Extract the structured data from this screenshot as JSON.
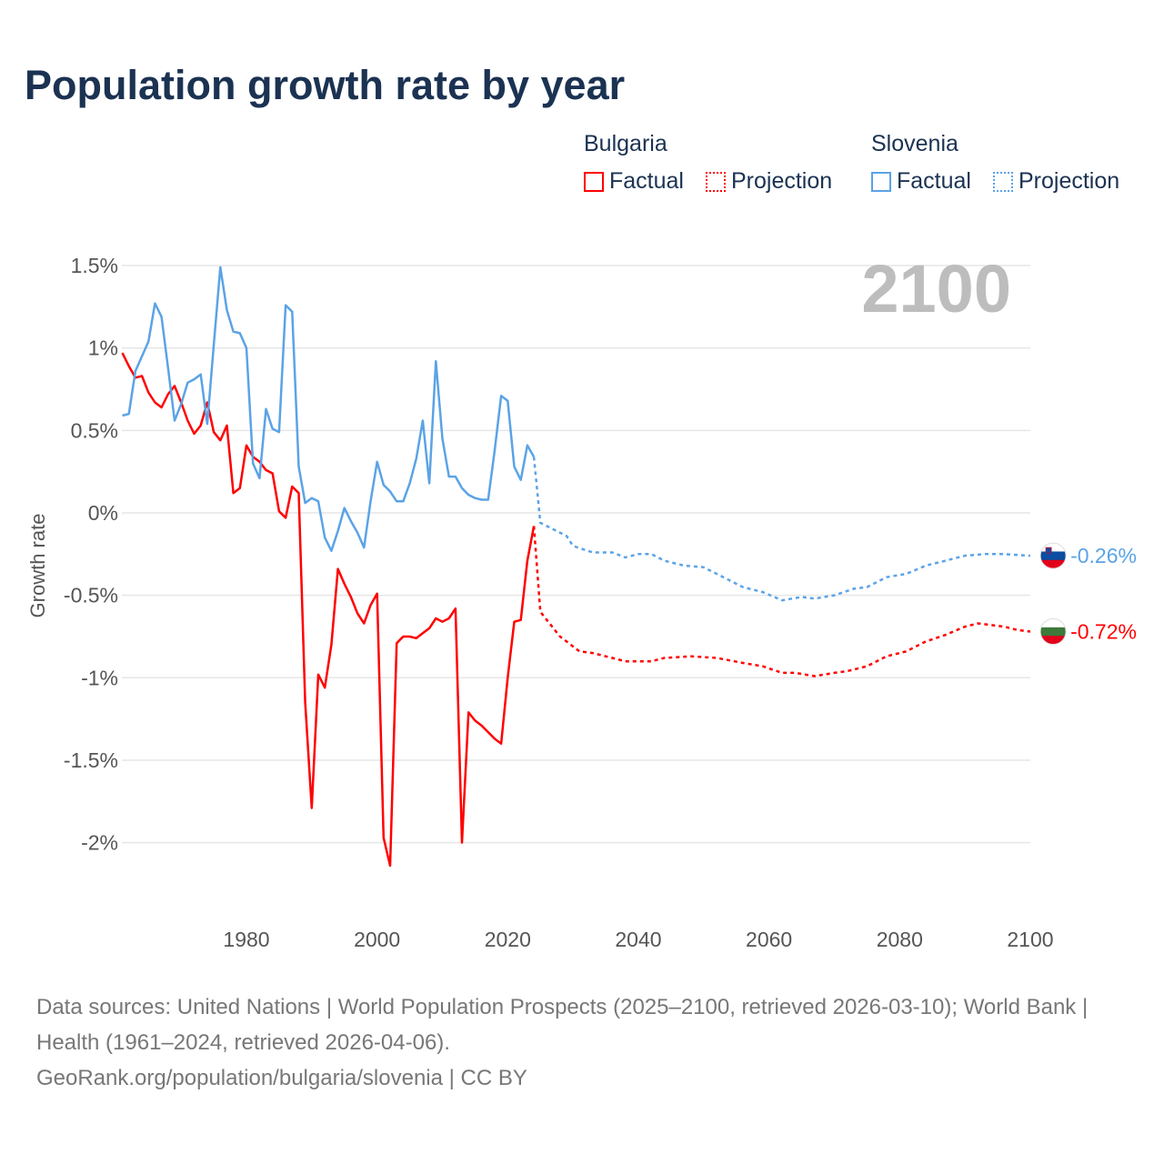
{
  "title": "Population growth rate by year",
  "current_year": "2100",
  "legend": {
    "groups": [
      {
        "name": "Bulgaria",
        "factual": "Factual",
        "projection": "Projection",
        "color": "#ff0000"
      },
      {
        "name": "Slovenia",
        "factual": "Factual",
        "projection": "Projection",
        "color": "#5ba3e6"
      }
    ]
  },
  "footer": {
    "sources": "Data sources: United Nations | World Population Prospects (2025–2100, retrieved 2026-03-10); World Bank | Health (1961–2024, retrieved 2026-04-06).",
    "link": "GeoRank.org/population/bulgaria/slovenia | CC BY"
  },
  "chart_data": {
    "type": "line",
    "title": "Population growth rate by year",
    "xlabel": "",
    "ylabel": "Growth rate",
    "xlim": [
      1961,
      2100
    ],
    "ylim": [
      -2.3,
      1.6
    ],
    "x_ticks": [
      1980,
      2000,
      2020,
      2040,
      2060,
      2080,
      2100
    ],
    "y_ticks": [
      1.5,
      1,
      0.5,
      0,
      -0.5,
      -1,
      -1.5,
      -2
    ],
    "y_tick_labels": [
      "1.5%",
      "1%",
      "0.5%",
      "0%",
      "-0.5%",
      "-1%",
      "-1.5%",
      "-2%"
    ],
    "grid": true,
    "series": [
      {
        "name": "Bulgaria",
        "color": "#ff0000",
        "end_label": "-0.72%",
        "factual": {
          "x": [
            1961,
            1962,
            1963,
            1964,
            1965,
            1966,
            1967,
            1968,
            1969,
            1970,
            1971,
            1972,
            1973,
            1974,
            1975,
            1976,
            1977,
            1978,
            1979,
            1980,
            1981,
            1982,
            1983,
            1984,
            1985,
            1986,
            1987,
            1988,
            1989,
            1990,
            1991,
            1992,
            1993,
            1994,
            1995,
            1996,
            1997,
            1998,
            1999,
            2000,
            2001,
            2002,
            2003,
            2004,
            2005,
            2006,
            2007,
            2008,
            2009,
            2010,
            2011,
            2012,
            2013,
            2014,
            2015,
            2016,
            2017,
            2018,
            2019,
            2020,
            2021,
            2022,
            2023,
            2024
          ],
          "y": [
            0.97,
            0.89,
            0.82,
            0.83,
            0.73,
            0.67,
            0.64,
            0.72,
            0.77,
            0.67,
            0.56,
            0.48,
            0.53,
            0.67,
            0.49,
            0.44,
            0.53,
            0.12,
            0.15,
            0.41,
            0.34,
            0.31,
            0.26,
            0.24,
            0.01,
            -0.03,
            0.16,
            0.12,
            -1.15,
            -1.79,
            -0.98,
            -1.06,
            -0.8,
            -0.34,
            -0.43,
            -0.51,
            -0.61,
            -0.67,
            -0.56,
            -0.49,
            -1.97,
            -2.14,
            -0.79,
            -0.75,
            -0.75,
            -0.76,
            -0.73,
            -0.7,
            -0.64,
            -0.66,
            -0.64,
            -0.58,
            -2.0,
            -1.21,
            -1.26,
            -1.29,
            -1.33,
            -1.37,
            -1.4,
            -1.0,
            -0.66,
            -0.65,
            -0.29,
            -0.08
          ]
        },
        "projection": {
          "x": [
            2024,
            2025,
            2026,
            2027,
            2028,
            2029,
            2030,
            2031,
            2033,
            2036,
            2038,
            2040,
            2042,
            2044,
            2048,
            2052,
            2056,
            2059,
            2062,
            2064,
            2067,
            2070,
            2072,
            2075,
            2078,
            2081,
            2084,
            2087,
            2090,
            2092,
            2094,
            2096,
            2098,
            2100
          ],
          "y": [
            -0.08,
            -0.6,
            -0.65,
            -0.7,
            -0.75,
            -0.78,
            -0.81,
            -0.84,
            -0.85,
            -0.88,
            -0.9,
            -0.9,
            -0.9,
            -0.88,
            -0.87,
            -0.88,
            -0.91,
            -0.93,
            -0.97,
            -0.97,
            -0.99,
            -0.97,
            -0.96,
            -0.93,
            -0.87,
            -0.84,
            -0.78,
            -0.74,
            -0.69,
            -0.67,
            -0.68,
            -0.69,
            -0.71,
            -0.72
          ]
        }
      },
      {
        "name": "Slovenia",
        "color": "#5ba3e6",
        "end_label": "-0.26%",
        "factual": {
          "x": [
            1961,
            1962,
            1963,
            1964,
            1965,
            1966,
            1967,
            1968,
            1969,
            1970,
            1971,
            1972,
            1973,
            1974,
            1975,
            1976,
            1977,
            1978,
            1979,
            1980,
            1981,
            1982,
            1983,
            1984,
            1985,
            1986,
            1987,
            1988,
            1989,
            1990,
            1991,
            1992,
            1993,
            1994,
            1995,
            1996,
            1997,
            1998,
            1999,
            2000,
            2001,
            2002,
            2003,
            2004,
            2005,
            2006,
            2007,
            2008,
            2009,
            2010,
            2011,
            2012,
            2013,
            2014,
            2015,
            2016,
            2017,
            2018,
            2019,
            2020,
            2021,
            2022,
            2023,
            2024
          ],
          "y": [
            0.59,
            0.6,
            0.86,
            0.95,
            1.04,
            1.27,
            1.19,
            0.88,
            0.56,
            0.66,
            0.79,
            0.81,
            0.84,
            0.54,
            1.02,
            1.49,
            1.23,
            1.1,
            1.09,
            1.0,
            0.3,
            0.21,
            0.63,
            0.51,
            0.49,
            1.26,
            1.22,
            0.28,
            0.06,
            0.09,
            0.07,
            -0.15,
            -0.23,
            -0.11,
            0.03,
            -0.05,
            -0.12,
            -0.21,
            0.07,
            0.31,
            0.17,
            0.13,
            0.07,
            0.07,
            0.18,
            0.33,
            0.56,
            0.18,
            0.92,
            0.45,
            0.22,
            0.22,
            0.15,
            0.11,
            0.09,
            0.08,
            0.08,
            0.38,
            0.71,
            0.68,
            0.28,
            0.2,
            0.41,
            0.34
          ]
        },
        "projection": {
          "x": [
            2024,
            2025,
            2027,
            2029,
            2030,
            2033,
            2036,
            2038,
            2040,
            2042,
            2044,
            2047,
            2050,
            2053,
            2056,
            2059,
            2062,
            2065,
            2067,
            2070,
            2073,
            2075,
            2078,
            2081,
            2084,
            2087,
            2090,
            2093,
            2096,
            2100
          ],
          "y": [
            0.34,
            -0.06,
            -0.1,
            -0.14,
            -0.2,
            -0.24,
            -0.24,
            -0.27,
            -0.25,
            -0.25,
            -0.29,
            -0.32,
            -0.33,
            -0.39,
            -0.45,
            -0.48,
            -0.53,
            -0.51,
            -0.52,
            -0.5,
            -0.46,
            -0.45,
            -0.39,
            -0.37,
            -0.32,
            -0.29,
            -0.26,
            -0.25,
            -0.25,
            -0.26
          ]
        }
      }
    ]
  }
}
